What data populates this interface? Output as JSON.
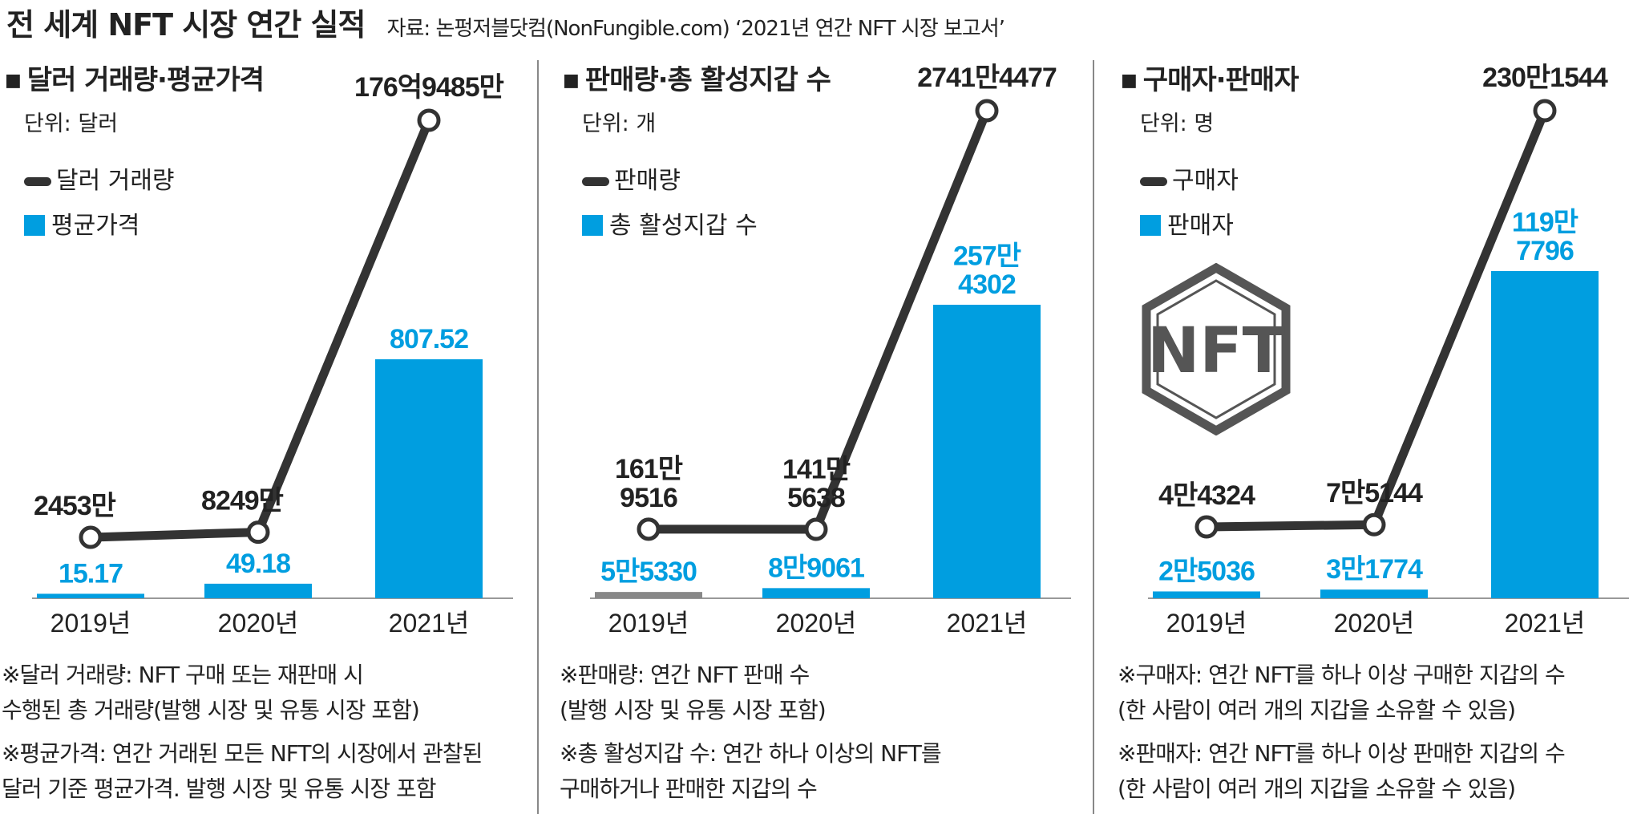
{
  "header": {
    "title": "전 세계 NFT 시장 연간 실적",
    "source": "자료: 논펑저블닷컴(NonFungible.com) ‘2021년 연간 NFT 시장 보고서’"
  },
  "colors": {
    "line": "#333333",
    "bar": "#009ee0",
    "bar_small_gray": "#888888",
    "label_blue": "#009ee0"
  },
  "panels": [
    {
      "title": "달러 거래량·평균가격",
      "unit": "단위: 달러",
      "legend_line": "달러 거래량",
      "legend_bar": "평균가격",
      "notes": [
        "※달러 거래량: NFT 구매 또는 재판매 시",
        "수행된 총 거래량(발행 시장 및 유통 시장 포함)",
        "※평균가격: 연간 거래된 모든 NFT의 시장에서 관찰된",
        "달러 기준 평균가격. 발행 시장 및 유통 시장 포함"
      ]
    },
    {
      "title": "판매량·총 활성지갑 수",
      "unit": "단위: 개",
      "legend_line": "판매량",
      "legend_bar": "총 활성지갑 수",
      "notes": [
        "※판매량: 연간 NFT 판매 수",
        "(발행 시장 및 유통 시장 포함)",
        "※총 활성지갑 수: 연간 하나 이상의 NFT를",
        "구매하거나 판매한 지갑의 수"
      ]
    },
    {
      "title": "구매자·판매자",
      "unit": "단위: 명",
      "legend_line": "구매자",
      "legend_bar": "판매자",
      "logo_text": "NFT",
      "notes": [
        "※구매자: 연간 NFT를 하나 이상 구매한 지갑의 수",
        "(한 사람이 여러 개의 지갑을 소유할 수 있음)",
        "※판매자: 연간 NFT를 하나 이상 판매한 지갑의 수",
        "(한 사람이 여러 개의 지갑을 소유할 수 있음)"
      ]
    }
  ],
  "chart_data": [
    {
      "type": "bar",
      "title": "달러 거래량·평균가격",
      "categories": [
        "2019년",
        "2020년",
        "2021년"
      ],
      "series": [
        {
          "name": "달러 거래량",
          "kind": "line",
          "values": [
            24530000,
            82490000,
            17694850000
          ],
          "labels": [
            "2453만",
            "8249만",
            "176억9485만"
          ]
        },
        {
          "name": "평균가격",
          "kind": "bar",
          "values": [
            15.17,
            49.18,
            807.52
          ],
          "labels": [
            "15.17",
            "49.18",
            "807.52"
          ]
        }
      ]
    },
    {
      "type": "bar",
      "title": "판매량·총 활성지갑 수",
      "categories": [
        "2019년",
        "2020년",
        "2021년"
      ],
      "series": [
        {
          "name": "판매량",
          "kind": "line",
          "values": [
            1619516,
            1415638,
            27414477
          ],
          "labels": [
            "161만\n9516",
            "141만\n5638",
            "2741만4477"
          ]
        },
        {
          "name": "총 활성지갑 수",
          "kind": "bar",
          "values": [
            55330,
            89061,
            2574302
          ],
          "labels": [
            "5만5330",
            "8만9061",
            "257만\n4302"
          ]
        }
      ]
    },
    {
      "type": "bar",
      "title": "구매자·판매자",
      "categories": [
        "2019년",
        "2020년",
        "2021년"
      ],
      "series": [
        {
          "name": "구매자",
          "kind": "line",
          "values": [
            44324,
            75144,
            2301544
          ],
          "labels": [
            "4만4324",
            "7만5144",
            "230만1544"
          ]
        },
        {
          "name": "판매자",
          "kind": "bar",
          "values": [
            25036,
            31774,
            1197796
          ],
          "labels": [
            "2만5036",
            "3만1774",
            "119만\n7796"
          ]
        }
      ]
    }
  ]
}
